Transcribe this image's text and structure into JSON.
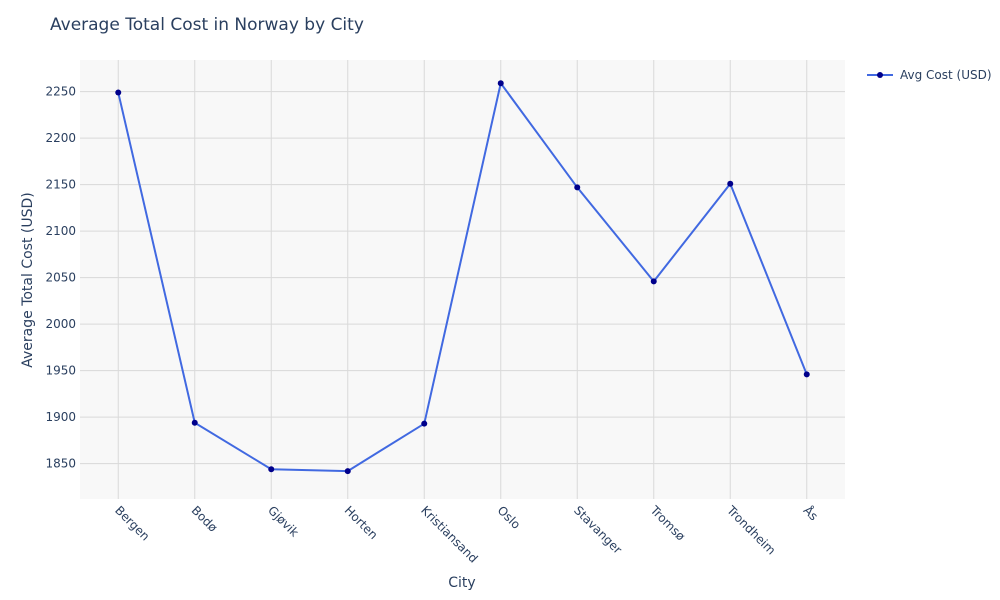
{
  "chart_data": {
    "type": "line",
    "title": "Average Total Cost in Norway by City",
    "xlabel": "City",
    "ylabel": "Average Total Cost (USD)",
    "categories": [
      "Bergen",
      "Bodø",
      "Gjøvik",
      "Horten",
      "Kristiansand",
      "Oslo",
      "Stavanger",
      "Tromsø",
      "Trondheim",
      "Ås"
    ],
    "series": [
      {
        "name": "Avg Cost (USD)",
        "values": [
          2249,
          1894,
          1844,
          1842,
          1893,
          2259,
          2147,
          2046,
          2151,
          1946
        ],
        "line_color": "#4169e1",
        "marker_color": "#00008b"
      }
    ],
    "ylim": [
      1812,
      2284
    ],
    "yticks": [
      1850,
      1900,
      1950,
      2000,
      2050,
      2100,
      2150,
      2200,
      2250
    ],
    "grid": true,
    "legend_position": "top-right",
    "colors": {
      "plot_background": "#f8f8f8",
      "grid": "#d9d9d9",
      "text": "#2a3f5f"
    }
  }
}
